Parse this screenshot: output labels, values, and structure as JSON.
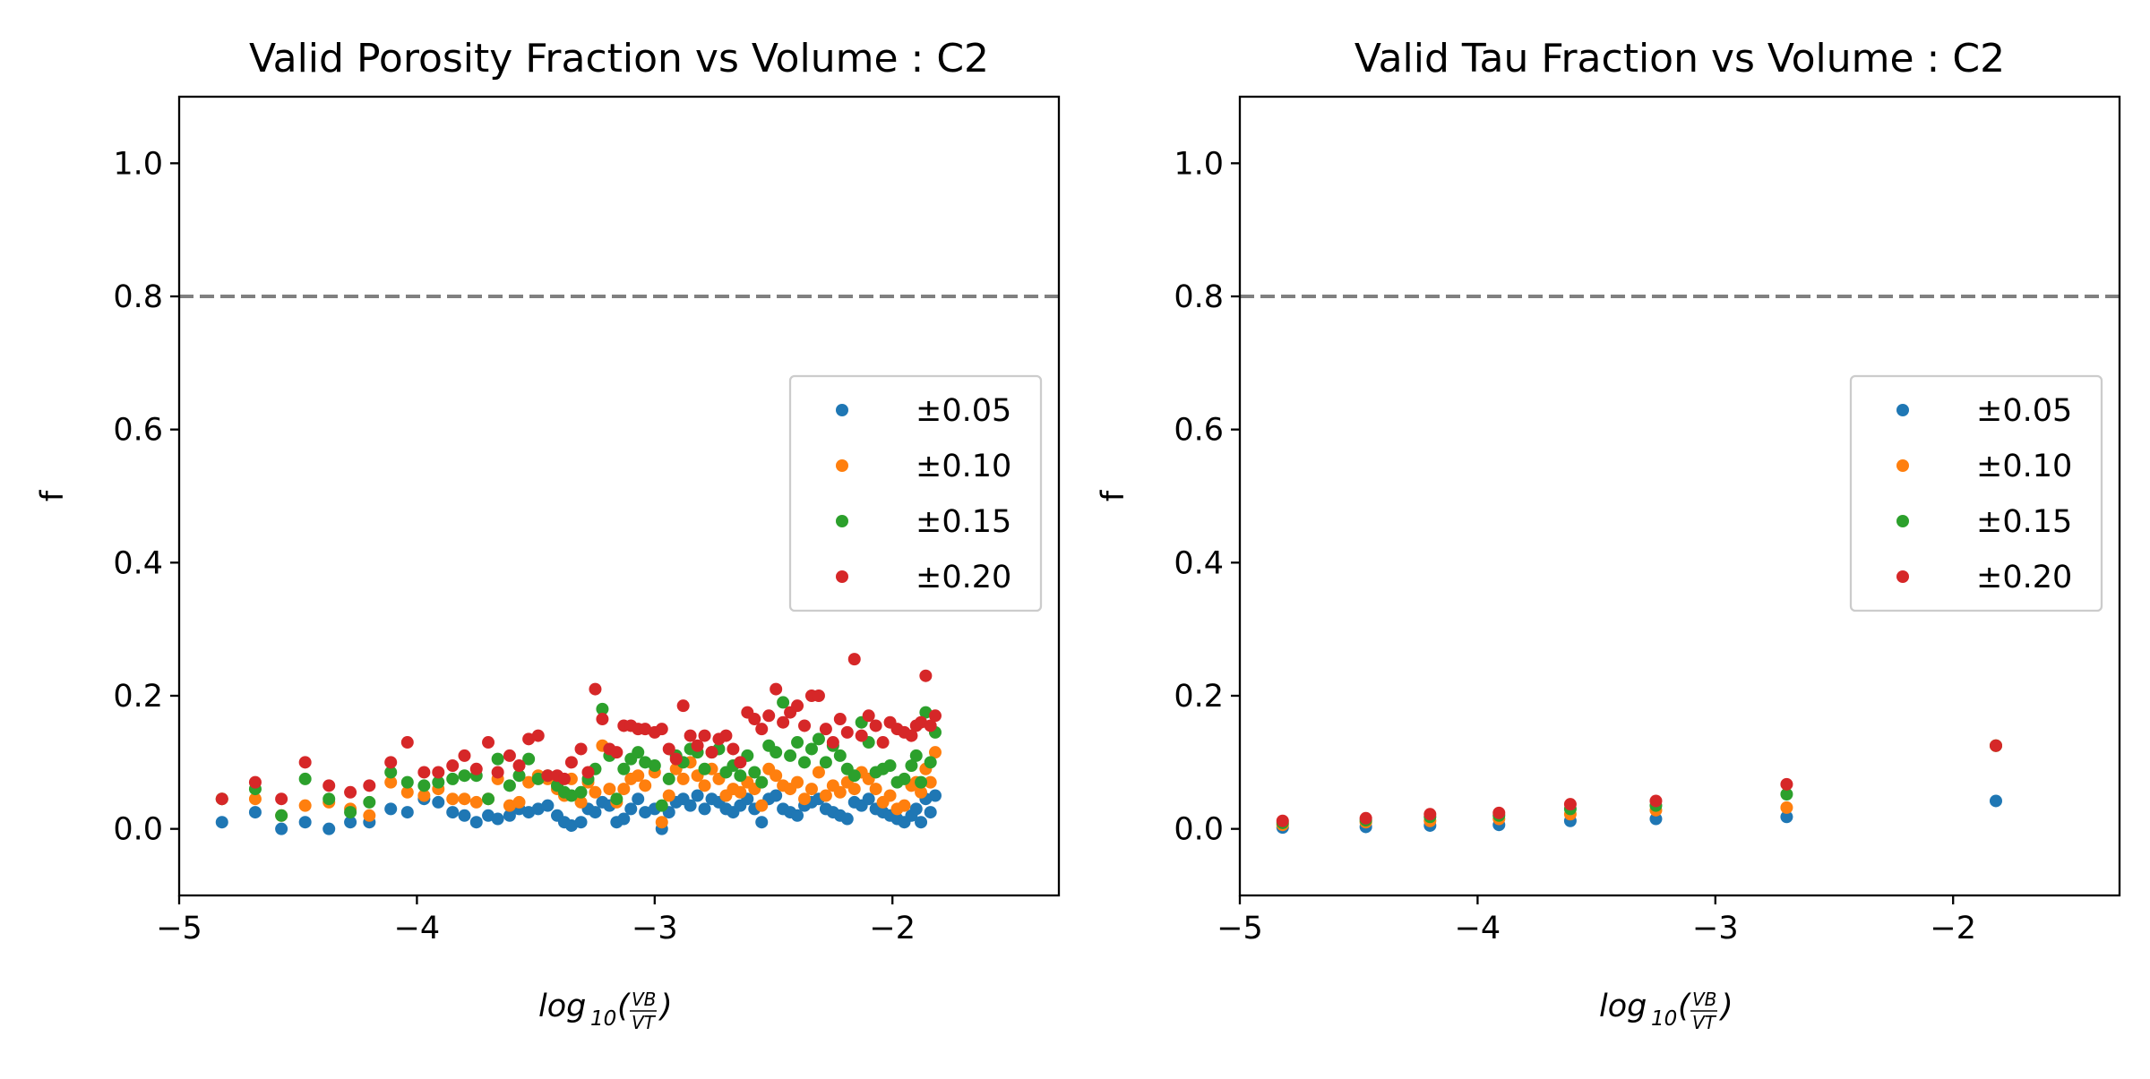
{
  "colors": {
    "series_0": "#1f77b4",
    "series_1": "#ff7f0e",
    "series_2": "#2ca02c",
    "series_3": "#d62728",
    "reference_line": "#808080"
  },
  "chart_data": [
    {
      "type": "scatter",
      "title": "Valid Porosity Fraction vs Volume : C2",
      "xlabel": "log10(VB/VT)",
      "xlabel_parts": {
        "main": "log",
        "sub": "10",
        "open": "(",
        "num": "VB",
        "den": "VT",
        "close": ")"
      },
      "ylabel": "f",
      "xlim": [
        -5,
        -1.3
      ],
      "ylim": [
        -0.1,
        1.1
      ],
      "xticks": [
        -5,
        -4,
        -3,
        -2
      ],
      "xtick_labels": [
        "−5",
        "−4",
        "−3",
        "−2"
      ],
      "yticks": [
        0.0,
        0.2,
        0.4,
        0.6,
        0.8,
        1.0
      ],
      "ytick_labels": [
        "0.0",
        "0.2",
        "0.4",
        "0.6",
        "0.8",
        "1.0"
      ],
      "reference_line": {
        "y": 0.8,
        "style": "dashed"
      },
      "grid": false,
      "legend_position": "right",
      "series": [
        {
          "name": "±0.05",
          "x": [
            -4.82,
            -4.68,
            -4.57,
            -4.47,
            -4.37,
            -4.28,
            -4.2,
            -4.11,
            -4.04,
            -3.97,
            -3.91,
            -3.85,
            -3.8,
            -3.75,
            -3.7,
            -3.66,
            -3.61,
            -3.57,
            -3.53,
            -3.49,
            -3.45,
            -3.41,
            -3.38,
            -3.35,
            -3.31,
            -3.28,
            -3.25,
            -3.22,
            -3.19,
            -3.16,
            -3.13,
            -3.1,
            -3.07,
            -3.04,
            -3.0,
            -2.97,
            -2.94,
            -2.91,
            -2.88,
            -2.85,
            -2.82,
            -2.79,
            -2.76,
            -2.73,
            -2.7,
            -2.67,
            -2.64,
            -2.61,
            -2.58,
            -2.55,
            -2.52,
            -2.49,
            -2.46,
            -2.43,
            -2.4,
            -2.37,
            -2.34,
            -2.31,
            -2.28,
            -2.25,
            -2.22,
            -2.19,
            -2.16,
            -2.13,
            -2.1,
            -2.07,
            -2.04,
            -2.01,
            -1.98,
            -1.95,
            -1.92,
            -1.9,
            -1.88,
            -1.86,
            -1.84,
            -1.82
          ],
          "y": [
            0.01,
            0.025,
            0.0,
            0.01,
            0.0,
            0.01,
            0.01,
            0.03,
            0.025,
            0.045,
            0.04,
            0.025,
            0.02,
            0.01,
            0.02,
            0.015,
            0.02,
            0.03,
            0.025,
            0.03,
            0.035,
            0.02,
            0.01,
            0.005,
            0.01,
            0.03,
            0.025,
            0.04,
            0.035,
            0.01,
            0.015,
            0.03,
            0.045,
            0.025,
            0.03,
            0.0,
            0.025,
            0.04,
            0.045,
            0.035,
            0.05,
            0.03,
            0.045,
            0.04,
            0.03,
            0.025,
            0.035,
            0.045,
            0.03,
            0.01,
            0.045,
            0.05,
            0.03,
            0.025,
            0.02,
            0.035,
            0.04,
            0.045,
            0.03,
            0.025,
            0.02,
            0.015,
            0.04,
            0.035,
            0.045,
            0.03,
            0.025,
            0.02,
            0.015,
            0.01,
            0.02,
            0.03,
            0.01,
            0.045,
            0.025,
            0.05
          ]
        },
        {
          "name": "±0.10",
          "x": [
            -4.82,
            -4.68,
            -4.57,
            -4.47,
            -4.37,
            -4.28,
            -4.2,
            -4.11,
            -4.04,
            -3.97,
            -3.91,
            -3.85,
            -3.8,
            -3.75,
            -3.7,
            -3.66,
            -3.61,
            -3.57,
            -3.53,
            -3.49,
            -3.45,
            -3.41,
            -3.38,
            -3.35,
            -3.31,
            -3.28,
            -3.25,
            -3.22,
            -3.19,
            -3.16,
            -3.13,
            -3.1,
            -3.07,
            -3.04,
            -3.0,
            -2.97,
            -2.94,
            -2.91,
            -2.88,
            -2.85,
            -2.82,
            -2.79,
            -2.76,
            -2.73,
            -2.7,
            -2.67,
            -2.64,
            -2.61,
            -2.58,
            -2.55,
            -2.52,
            -2.49,
            -2.46,
            -2.43,
            -2.4,
            -2.37,
            -2.34,
            -2.31,
            -2.28,
            -2.25,
            -2.22,
            -2.19,
            -2.16,
            -2.13,
            -2.1,
            -2.07,
            -2.04,
            -2.01,
            -1.98,
            -1.95,
            -1.92,
            -1.9,
            -1.88,
            -1.86,
            -1.84,
            -1.82
          ],
          "y": [
            0.045,
            0.045,
            0.02,
            0.035,
            0.04,
            0.03,
            0.02,
            0.07,
            0.055,
            0.05,
            0.06,
            0.045,
            0.045,
            0.04,
            0.045,
            0.075,
            0.035,
            0.04,
            0.07,
            0.08,
            0.075,
            0.06,
            0.05,
            0.075,
            0.04,
            0.07,
            0.055,
            0.125,
            0.06,
            0.04,
            0.06,
            0.075,
            0.08,
            0.065,
            0.085,
            0.01,
            0.05,
            0.09,
            0.075,
            0.1,
            0.08,
            0.065,
            0.09,
            0.075,
            0.05,
            0.06,
            0.055,
            0.07,
            0.06,
            0.035,
            0.09,
            0.08,
            0.065,
            0.06,
            0.07,
            0.045,
            0.06,
            0.085,
            0.05,
            0.065,
            0.055,
            0.07,
            0.06,
            0.085,
            0.075,
            0.06,
            0.04,
            0.05,
            0.03,
            0.035,
            0.065,
            0.07,
            0.055,
            0.09,
            0.07,
            0.115
          ]
        },
        {
          "name": "±0.15",
          "x": [
            -4.82,
            -4.68,
            -4.57,
            -4.47,
            -4.37,
            -4.28,
            -4.2,
            -4.11,
            -4.04,
            -3.97,
            -3.91,
            -3.85,
            -3.8,
            -3.75,
            -3.7,
            -3.66,
            -3.61,
            -3.57,
            -3.53,
            -3.49,
            -3.45,
            -3.41,
            -3.38,
            -3.35,
            -3.31,
            -3.28,
            -3.25,
            -3.22,
            -3.19,
            -3.16,
            -3.13,
            -3.1,
            -3.07,
            -3.04,
            -3.0,
            -2.97,
            -2.94,
            -2.91,
            -2.88,
            -2.85,
            -2.82,
            -2.79,
            -2.76,
            -2.73,
            -2.7,
            -2.67,
            -2.64,
            -2.61,
            -2.58,
            -2.55,
            -2.52,
            -2.49,
            -2.46,
            -2.43,
            -2.4,
            -2.37,
            -2.34,
            -2.31,
            -2.28,
            -2.25,
            -2.22,
            -2.19,
            -2.16,
            -2.13,
            -2.1,
            -2.07,
            -2.04,
            -2.01,
            -1.98,
            -1.95,
            -1.92,
            -1.9,
            -1.88,
            -1.86,
            -1.84,
            -1.82
          ],
          "y": [
            0.045,
            0.06,
            0.02,
            0.075,
            0.045,
            0.025,
            0.04,
            0.085,
            0.07,
            0.065,
            0.07,
            0.075,
            0.08,
            0.08,
            0.045,
            0.105,
            0.065,
            0.08,
            0.105,
            0.075,
            0.08,
            0.065,
            0.055,
            0.05,
            0.055,
            0.075,
            0.09,
            0.18,
            0.11,
            0.045,
            0.09,
            0.105,
            0.115,
            0.1,
            0.095,
            0.035,
            0.075,
            0.11,
            0.1,
            0.12,
            0.115,
            0.09,
            0.115,
            0.12,
            0.085,
            0.095,
            0.08,
            0.11,
            0.085,
            0.07,
            0.125,
            0.115,
            0.19,
            0.11,
            0.13,
            0.1,
            0.12,
            0.135,
            0.1,
            0.125,
            0.11,
            0.09,
            0.08,
            0.16,
            0.13,
            0.085,
            0.09,
            0.095,
            0.07,
            0.075,
            0.095,
            0.11,
            0.07,
            0.175,
            0.1,
            0.145
          ]
        },
        {
          "name": "±0.20",
          "x": [
            -4.82,
            -4.68,
            -4.57,
            -4.47,
            -4.37,
            -4.28,
            -4.2,
            -4.11,
            -4.04,
            -3.97,
            -3.91,
            -3.85,
            -3.8,
            -3.75,
            -3.7,
            -3.66,
            -3.61,
            -3.57,
            -3.53,
            -3.49,
            -3.45,
            -3.41,
            -3.38,
            -3.35,
            -3.31,
            -3.28,
            -3.25,
            -3.22,
            -3.19,
            -3.16,
            -3.13,
            -3.1,
            -3.07,
            -3.04,
            -3.0,
            -2.97,
            -2.94,
            -2.91,
            -2.88,
            -2.85,
            -2.82,
            -2.79,
            -2.76,
            -2.73,
            -2.7,
            -2.67,
            -2.64,
            -2.61,
            -2.58,
            -2.55,
            -2.52,
            -2.49,
            -2.46,
            -2.43,
            -2.4,
            -2.37,
            -2.34,
            -2.31,
            -2.28,
            -2.25,
            -2.22,
            -2.19,
            -2.16,
            -2.13,
            -2.1,
            -2.07,
            -2.04,
            -2.01,
            -1.98,
            -1.95,
            -1.92,
            -1.9,
            -1.88,
            -1.86,
            -1.84,
            -1.82
          ],
          "y": [
            0.045,
            0.07,
            0.045,
            0.1,
            0.065,
            0.055,
            0.065,
            0.1,
            0.13,
            0.085,
            0.085,
            0.095,
            0.11,
            0.09,
            0.13,
            0.085,
            0.11,
            0.095,
            0.135,
            0.14,
            0.08,
            0.08,
            0.075,
            0.1,
            0.12,
            0.085,
            0.21,
            0.165,
            0.12,
            0.115,
            0.155,
            0.155,
            0.15,
            0.15,
            0.145,
            0.15,
            0.12,
            0.105,
            0.185,
            0.14,
            0.125,
            0.14,
            0.115,
            0.135,
            0.14,
            0.12,
            0.1,
            0.175,
            0.165,
            0.15,
            0.17,
            0.21,
            0.16,
            0.175,
            0.185,
            0.155,
            0.2,
            0.2,
            0.15,
            0.13,
            0.165,
            0.145,
            0.255,
            0.14,
            0.17,
            0.155,
            0.13,
            0.16,
            0.15,
            0.145,
            0.14,
            0.155,
            0.16,
            0.23,
            0.155,
            0.17
          ]
        }
      ]
    },
    {
      "type": "scatter",
      "title": "Valid Tau Fraction vs Volume : C2",
      "xlabel": "log10(VB/VT)",
      "xlabel_parts": {
        "main": "log",
        "sub": "10",
        "open": "(",
        "num": "VB",
        "den": "VT",
        "close": ")"
      },
      "ylabel": "f",
      "xlim": [
        -5,
        -1.3
      ],
      "ylim": [
        -0.1,
        1.1
      ],
      "xticks": [
        -5,
        -4,
        -3,
        -2
      ],
      "xtick_labels": [
        "−5",
        "−4",
        "−3",
        "−2"
      ],
      "yticks": [
        0.0,
        0.2,
        0.4,
        0.6,
        0.8,
        1.0
      ],
      "ytick_labels": [
        "0.0",
        "0.2",
        "0.4",
        "0.6",
        "0.8",
        "1.0"
      ],
      "reference_line": {
        "y": 0.8,
        "style": "dashed"
      },
      "grid": false,
      "legend_position": "right",
      "series": [
        {
          "name": "±0.05",
          "x": [
            -4.82,
            -4.47,
            -4.2,
            -3.91,
            -3.61,
            -3.25,
            -2.7,
            -1.82
          ],
          "y": [
            0.002,
            0.003,
            0.005,
            0.006,
            0.012,
            0.015,
            0.018,
            0.042
          ]
        },
        {
          "name": "±0.10",
          "x": [
            -4.82,
            -4.47,
            -4.2,
            -3.91,
            -3.61,
            -3.25,
            -2.7,
            -1.82
          ],
          "y": [
            0.006,
            0.01,
            0.012,
            0.015,
            0.022,
            0.028,
            0.032,
            0.125
          ]
        },
        {
          "name": "±0.15",
          "x": [
            -4.82,
            -4.47,
            -4.2,
            -3.91,
            -3.61,
            -3.25,
            -2.7,
            -1.82
          ],
          "y": [
            0.009,
            0.013,
            0.018,
            0.02,
            0.03,
            0.035,
            0.052,
            0.125
          ]
        },
        {
          "name": "±0.20",
          "x": [
            -4.82,
            -4.47,
            -4.2,
            -3.91,
            -3.61,
            -3.25,
            -2.7,
            -1.82
          ],
          "y": [
            0.012,
            0.016,
            0.022,
            0.024,
            0.037,
            0.042,
            0.067,
            0.125
          ]
        }
      ]
    }
  ]
}
